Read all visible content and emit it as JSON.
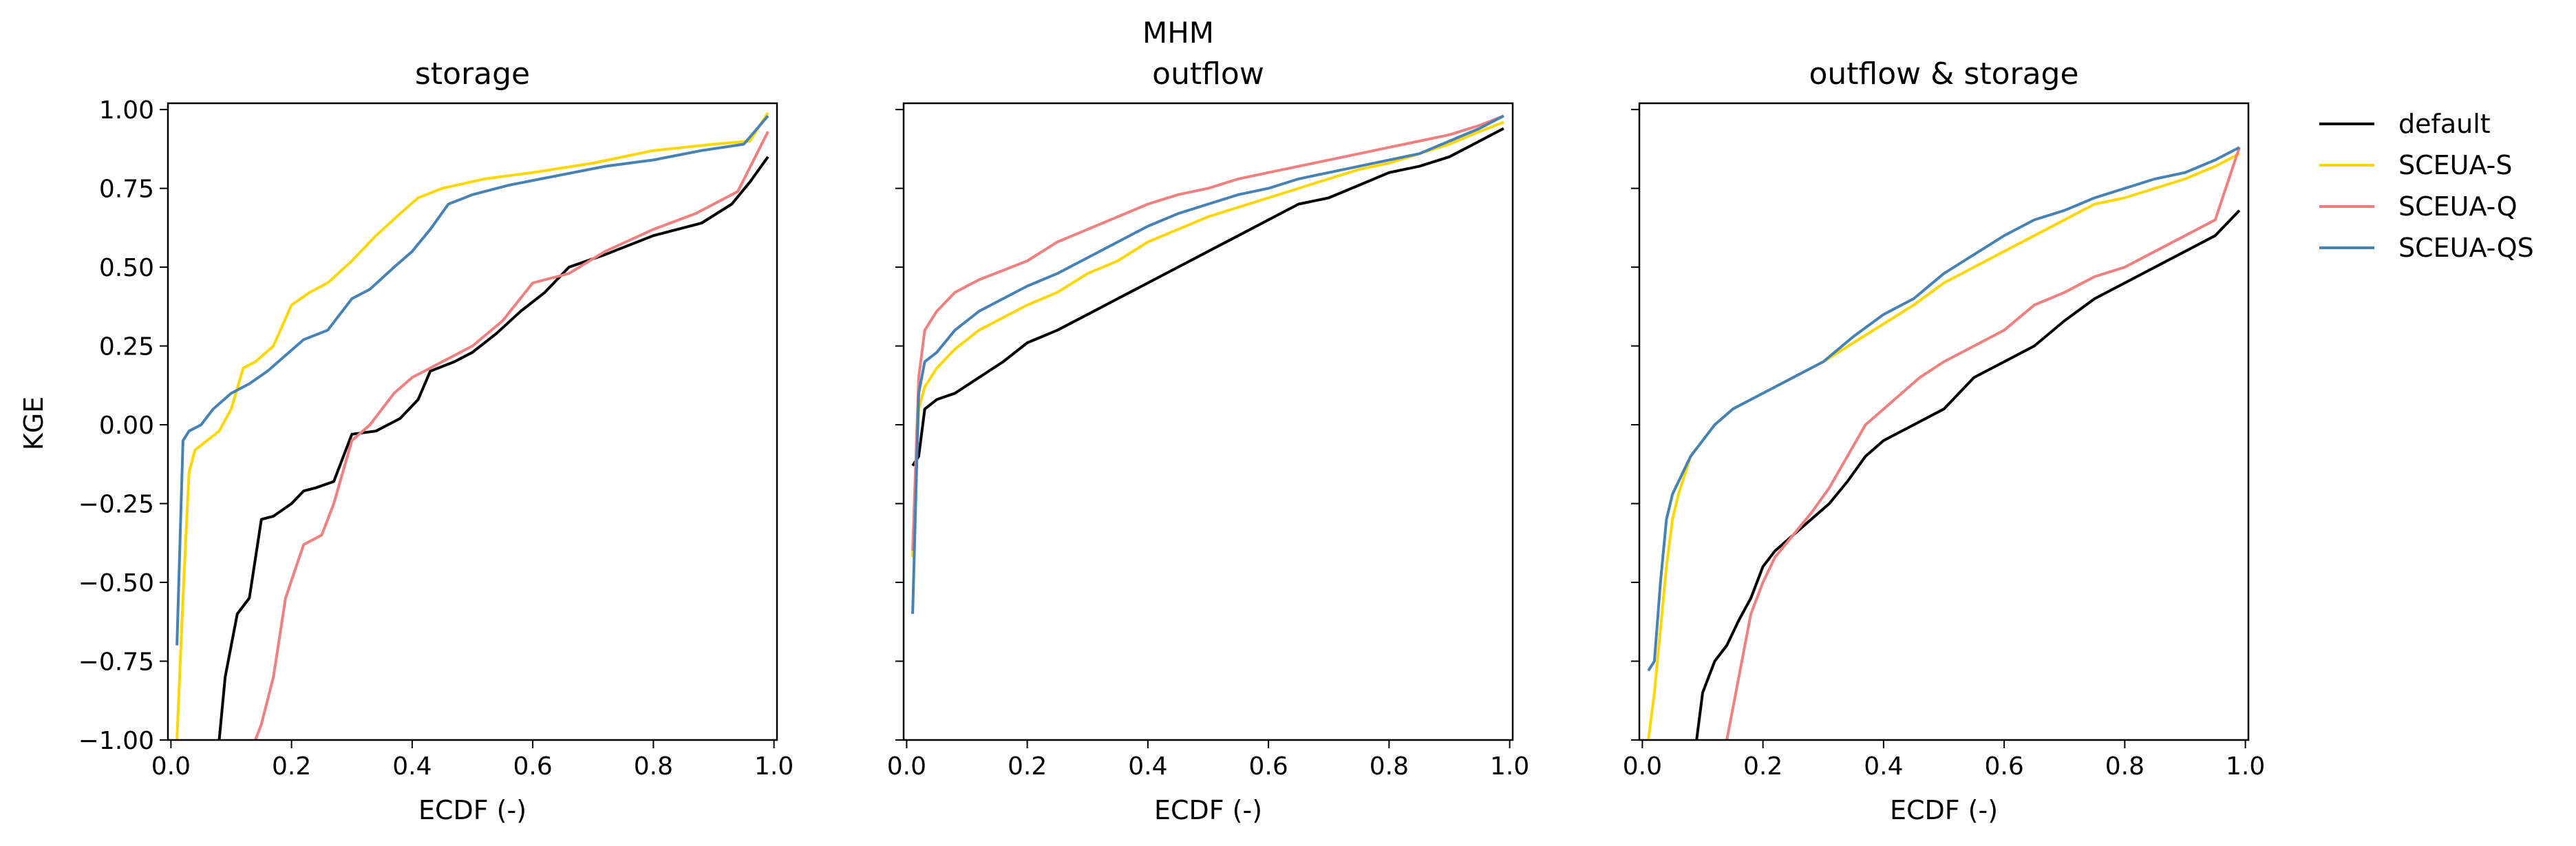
{
  "figure": {
    "suptitle": "MHM",
    "ylabel": "KGE",
    "legend": {
      "placement": "right",
      "entries": [
        "default",
        "SCEUA-S",
        "SCEUA-Q",
        "SCEUA-QS"
      ]
    }
  },
  "colors": {
    "default": "#000000",
    "SCEUA-S": "#ffd700",
    "SCEUA-Q": "#f08080",
    "SCEUA-QS": "#4682b4"
  },
  "chart_data": [
    {
      "type": "line",
      "title": "storage",
      "xlabel": "ECDF (-)",
      "ylabel": "KGE",
      "xlim": [
        -0.005,
        1.005
      ],
      "ylim": [
        -1.0,
        1.02
      ],
      "xticks": [
        "0.0",
        "0.2",
        "0.4",
        "0.6",
        "0.8",
        "1.0"
      ],
      "yticks": [
        "1.00",
        "0.75",
        "0.50",
        "0.25",
        "0.00",
        "−0.25",
        "−0.50",
        "−0.75",
        "−1.00"
      ],
      "series": [
        {
          "name": "default",
          "x": [
            0.08,
            0.09,
            0.11,
            0.13,
            0.15,
            0.17,
            0.2,
            0.22,
            0.24,
            0.27,
            0.29,
            0.3,
            0.34,
            0.38,
            0.41,
            0.43,
            0.47,
            0.5,
            0.54,
            0.58,
            0.62,
            0.66,
            0.72,
            0.8,
            0.88,
            0.93,
            0.96,
            0.99
          ],
          "y": [
            -1.0,
            -0.8,
            -0.6,
            -0.55,
            -0.3,
            -0.29,
            -0.25,
            -0.21,
            -0.2,
            -0.18,
            -0.08,
            -0.03,
            -0.02,
            0.02,
            0.08,
            0.17,
            0.2,
            0.23,
            0.29,
            0.36,
            0.42,
            0.5,
            0.54,
            0.6,
            0.64,
            0.7,
            0.77,
            0.85
          ]
        },
        {
          "name": "SCEUA-S",
          "x": [
            0.01,
            0.02,
            0.03,
            0.04,
            0.06,
            0.08,
            0.1,
            0.12,
            0.14,
            0.17,
            0.2,
            0.23,
            0.26,
            0.3,
            0.34,
            0.38,
            0.41,
            0.45,
            0.52,
            0.6,
            0.7,
            0.8,
            0.9,
            0.96,
            0.99
          ],
          "y": [
            -1.0,
            -0.55,
            -0.15,
            -0.08,
            -0.05,
            -0.02,
            0.05,
            0.18,
            0.2,
            0.25,
            0.38,
            0.42,
            0.45,
            0.52,
            0.6,
            0.67,
            0.72,
            0.75,
            0.78,
            0.8,
            0.83,
            0.87,
            0.89,
            0.9,
            0.99
          ]
        },
        {
          "name": "SCEUA-Q",
          "x": [
            0.14,
            0.15,
            0.17,
            0.19,
            0.22,
            0.25,
            0.27,
            0.3,
            0.33,
            0.37,
            0.4,
            0.45,
            0.5,
            0.55,
            0.6,
            0.66,
            0.72,
            0.8,
            0.87,
            0.94,
            0.99
          ],
          "y": [
            -1.0,
            -0.95,
            -0.8,
            -0.55,
            -0.38,
            -0.35,
            -0.25,
            -0.05,
            0.0,
            0.1,
            0.15,
            0.2,
            0.25,
            0.33,
            0.45,
            0.48,
            0.55,
            0.62,
            0.67,
            0.74,
            0.93
          ]
        },
        {
          "name": "SCEUA-QS",
          "x": [
            0.01,
            0.02,
            0.03,
            0.05,
            0.07,
            0.1,
            0.13,
            0.16,
            0.19,
            0.22,
            0.26,
            0.3,
            0.33,
            0.37,
            0.4,
            0.43,
            0.46,
            0.5,
            0.56,
            0.64,
            0.72,
            0.8,
            0.88,
            0.95,
            0.99
          ],
          "y": [
            -0.7,
            -0.05,
            -0.02,
            0.0,
            0.05,
            0.1,
            0.13,
            0.17,
            0.22,
            0.27,
            0.3,
            0.4,
            0.43,
            0.5,
            0.55,
            0.62,
            0.7,
            0.73,
            0.76,
            0.79,
            0.82,
            0.84,
            0.87,
            0.89,
            0.98
          ]
        }
      ]
    },
    {
      "type": "line",
      "title": "outflow",
      "xlabel": "ECDF (-)",
      "xlim": [
        -0.005,
        1.005
      ],
      "ylim": [
        -1.0,
        1.02
      ],
      "xticks": [
        "0.0",
        "0.2",
        "0.4",
        "0.6",
        "0.8",
        "1.0"
      ],
      "series": [
        {
          "name": "default",
          "x": [
            0.01,
            0.02,
            0.03,
            0.05,
            0.08,
            0.12,
            0.16,
            0.2,
            0.25,
            0.3,
            0.35,
            0.4,
            0.45,
            0.5,
            0.55,
            0.6,
            0.65,
            0.7,
            0.75,
            0.8,
            0.85,
            0.9,
            0.95,
            0.99
          ],
          "y": [
            -0.13,
            -0.1,
            0.05,
            0.08,
            0.1,
            0.15,
            0.2,
            0.26,
            0.3,
            0.35,
            0.4,
            0.45,
            0.5,
            0.55,
            0.6,
            0.65,
            0.7,
            0.72,
            0.76,
            0.8,
            0.82,
            0.85,
            0.9,
            0.94
          ]
        },
        {
          "name": "SCEUA-S",
          "x": [
            0.01,
            0.02,
            0.03,
            0.05,
            0.08,
            0.12,
            0.16,
            0.2,
            0.25,
            0.3,
            0.35,
            0.4,
            0.45,
            0.5,
            0.55,
            0.6,
            0.65,
            0.7,
            0.75,
            0.8,
            0.85,
            0.9,
            0.95,
            0.99
          ],
          "y": [
            -0.42,
            0.05,
            0.12,
            0.18,
            0.24,
            0.3,
            0.34,
            0.38,
            0.42,
            0.48,
            0.52,
            0.58,
            0.62,
            0.66,
            0.69,
            0.72,
            0.75,
            0.78,
            0.81,
            0.83,
            0.86,
            0.89,
            0.93,
            0.96
          ]
        },
        {
          "name": "SCEUA-Q",
          "x": [
            0.01,
            0.02,
            0.03,
            0.05,
            0.08,
            0.12,
            0.16,
            0.2,
            0.25,
            0.3,
            0.35,
            0.4,
            0.45,
            0.5,
            0.55,
            0.6,
            0.65,
            0.7,
            0.75,
            0.8,
            0.85,
            0.9,
            0.95,
            0.99
          ],
          "y": [
            -0.4,
            0.15,
            0.3,
            0.36,
            0.42,
            0.46,
            0.49,
            0.52,
            0.58,
            0.62,
            0.66,
            0.7,
            0.73,
            0.75,
            0.78,
            0.8,
            0.82,
            0.84,
            0.86,
            0.88,
            0.9,
            0.92,
            0.95,
            0.98
          ]
        },
        {
          "name": "SCEUA-QS",
          "x": [
            0.01,
            0.02,
            0.03,
            0.05,
            0.08,
            0.12,
            0.16,
            0.2,
            0.25,
            0.3,
            0.35,
            0.4,
            0.45,
            0.5,
            0.55,
            0.6,
            0.65,
            0.7,
            0.75,
            0.8,
            0.85,
            0.9,
            0.95,
            0.99
          ],
          "y": [
            -0.6,
            0.1,
            0.2,
            0.23,
            0.3,
            0.36,
            0.4,
            0.44,
            0.48,
            0.53,
            0.58,
            0.63,
            0.67,
            0.7,
            0.73,
            0.75,
            0.78,
            0.8,
            0.82,
            0.84,
            0.86,
            0.9,
            0.94,
            0.98
          ]
        }
      ]
    },
    {
      "type": "line",
      "title": "outflow & storage",
      "xlabel": "ECDF (-)",
      "xlim": [
        -0.005,
        1.005
      ],
      "ylim": [
        -1.0,
        1.02
      ],
      "xticks": [
        "0.0",
        "0.2",
        "0.4",
        "0.6",
        "0.8",
        "1.0"
      ],
      "series": [
        {
          "name": "default",
          "x": [
            0.09,
            0.1,
            0.12,
            0.14,
            0.16,
            0.18,
            0.2,
            0.22,
            0.25,
            0.28,
            0.31,
            0.34,
            0.37,
            0.4,
            0.45,
            0.5,
            0.55,
            0.6,
            0.65,
            0.7,
            0.75,
            0.8,
            0.85,
            0.9,
            0.95,
            0.99
          ],
          "y": [
            -1.0,
            -0.85,
            -0.75,
            -0.7,
            -0.62,
            -0.55,
            -0.45,
            -0.4,
            -0.35,
            -0.3,
            -0.25,
            -0.18,
            -0.1,
            -0.05,
            0.0,
            0.05,
            0.15,
            0.2,
            0.25,
            0.33,
            0.4,
            0.45,
            0.5,
            0.55,
            0.6,
            0.68
          ]
        },
        {
          "name": "SCEUA-S",
          "x": [
            0.01,
            0.02,
            0.03,
            0.04,
            0.05,
            0.06,
            0.08,
            0.1,
            0.12,
            0.15,
            0.18,
            0.22,
            0.26,
            0.3,
            0.35,
            0.4,
            0.45,
            0.5,
            0.55,
            0.6,
            0.65,
            0.7,
            0.75,
            0.8,
            0.85,
            0.9,
            0.95,
            0.99
          ],
          "y": [
            -1.0,
            -0.85,
            -0.65,
            -0.45,
            -0.3,
            -0.22,
            -0.1,
            -0.05,
            0.0,
            0.05,
            0.08,
            0.12,
            0.16,
            0.2,
            0.26,
            0.32,
            0.38,
            0.45,
            0.5,
            0.55,
            0.6,
            0.65,
            0.7,
            0.72,
            0.75,
            0.78,
            0.82,
            0.86
          ]
        },
        {
          "name": "SCEUA-Q",
          "x": [
            0.14,
            0.16,
            0.18,
            0.2,
            0.22,
            0.25,
            0.28,
            0.31,
            0.34,
            0.37,
            0.4,
            0.43,
            0.46,
            0.5,
            0.55,
            0.6,
            0.65,
            0.7,
            0.75,
            0.8,
            0.85,
            0.9,
            0.95,
            0.99
          ],
          "y": [
            -1.0,
            -0.8,
            -0.6,
            -0.5,
            -0.42,
            -0.35,
            -0.28,
            -0.2,
            -0.1,
            0.0,
            0.05,
            0.1,
            0.15,
            0.2,
            0.25,
            0.3,
            0.38,
            0.42,
            0.47,
            0.5,
            0.55,
            0.6,
            0.65,
            0.88
          ]
        },
        {
          "name": "SCEUA-QS",
          "x": [
            0.01,
            0.02,
            0.03,
            0.04,
            0.05,
            0.06,
            0.08,
            0.1,
            0.12,
            0.15,
            0.18,
            0.22,
            0.26,
            0.3,
            0.35,
            0.4,
            0.45,
            0.5,
            0.55,
            0.6,
            0.65,
            0.7,
            0.75,
            0.8,
            0.85,
            0.9,
            0.95,
            0.99
          ],
          "y": [
            -0.78,
            -0.75,
            -0.5,
            -0.3,
            -0.22,
            -0.18,
            -0.1,
            -0.05,
            0.0,
            0.05,
            0.08,
            0.12,
            0.16,
            0.2,
            0.28,
            0.35,
            0.4,
            0.48,
            0.54,
            0.6,
            0.65,
            0.68,
            0.72,
            0.75,
            0.78,
            0.8,
            0.84,
            0.88
          ]
        }
      ]
    }
  ]
}
